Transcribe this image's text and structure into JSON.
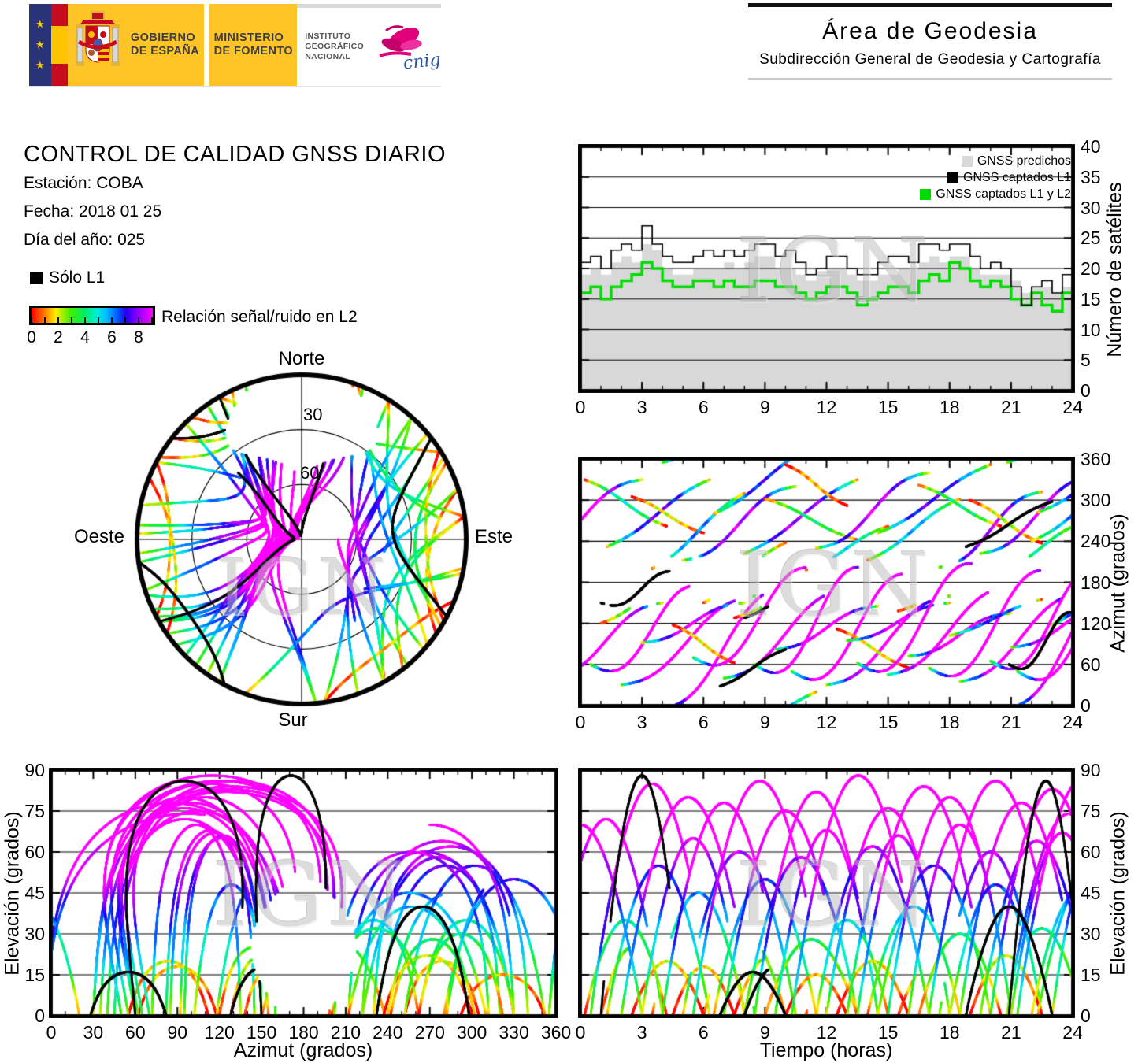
{
  "header": {
    "logo": {
      "star": "★",
      "gobierno_line1": "GOBIERNO",
      "gobierno_line2": "DE ESPAÑA",
      "ministerio_line1": "MINISTERIO",
      "ministerio_line2": "DE FOMENTO",
      "instituto_line1": "INSTITUTO",
      "instituto_line2": "GEOGRÁFICO",
      "instituto_line3": "NACIONAL",
      "cnig": "cnig"
    },
    "area_title": "Área de Geodesia",
    "area_subtitle": "Subdirección General de Geodesia y Cartografía"
  },
  "info": {
    "title": "CONTROL DE CALIDAD GNSS DIARIO",
    "station": "Estación: COBA",
    "date": "Fecha: 2018 01 25",
    "doy": "Día del año: 025"
  },
  "legend": {
    "solo_l1": "Sólo L1",
    "colorbar_title": "Relación señal/ruido en L2",
    "colorbar_tick_labels": [
      0,
      2,
      4,
      6,
      8
    ],
    "colorbar_range": [
      0,
      9
    ]
  },
  "watermark": "IGN",
  "skyplot": {
    "north": "Norte",
    "south": "Sur",
    "east": "Este",
    "west": "Oeste",
    "ring_30": "30",
    "ring_60": "60"
  },
  "charts": {
    "satcount": {
      "ylabel": "Número de satélites",
      "x_ticks": [
        0,
        3,
        6,
        9,
        12,
        15,
        18,
        21,
        24
      ],
      "y_ticks": [
        0,
        5,
        10,
        15,
        20,
        25,
        30,
        35,
        40
      ],
      "legend": [
        {
          "label": "GNSS predichos",
          "color": "#d8d8d8"
        },
        {
          "label": "GNSS captados L1",
          "color": "#000000"
        },
        {
          "label": "GNSS captados L1 y L2",
          "color": "#00dd00"
        }
      ]
    },
    "azimut_time": {
      "ylabel": "Azimut (grados)",
      "x_ticks": [
        0,
        3,
        6,
        9,
        12,
        15,
        18,
        21,
        24
      ],
      "y_ticks": [
        0,
        60,
        120,
        180,
        240,
        300,
        360
      ]
    },
    "elev_azimut": {
      "ylabel": "Elevación (grados)",
      "xlabel": "Azimut (grados)",
      "x_ticks": [
        0,
        30,
        60,
        90,
        120,
        150,
        180,
        210,
        240,
        270,
        300,
        330,
        360
      ],
      "y_ticks": [
        0,
        15,
        30,
        45,
        60,
        75,
        90
      ]
    },
    "elev_time": {
      "ylabel": "Elevación (grados)",
      "xlabel": "Tiempo (horas)",
      "x_ticks": [
        0,
        3,
        6,
        9,
        12,
        15,
        18,
        21,
        24
      ],
      "y_ticks": [
        0,
        15,
        30,
        45,
        60,
        75,
        90
      ]
    }
  },
  "chart_data": {
    "satellite_counts": {
      "type": "line",
      "style": "steps",
      "xlim": [
        0,
        24
      ],
      "ylim": [
        0,
        40
      ],
      "x_start": 0,
      "x_step": 0.5,
      "series": [
        {
          "name": "GNSS predichos",
          "color": "#d8d8d8",
          "fill": true,
          "values": [
            19,
            20,
            19,
            21,
            22,
            21,
            24,
            23,
            20,
            19,
            19,
            20,
            20,
            20,
            21,
            20,
            21,
            22,
            22,
            20,
            20,
            19,
            18,
            19,
            20,
            20,
            19,
            18,
            18,
            19,
            19,
            20,
            20,
            21,
            22,
            21,
            22,
            22,
            20,
            19,
            19,
            19,
            18,
            16,
            17,
            17,
            16,
            17,
            18
          ]
        },
        {
          "name": "GNSS captados L1",
          "color": "#000000",
          "fill": false,
          "values": [
            21,
            22,
            20,
            23,
            24,
            23,
            27,
            24,
            22,
            21,
            21,
            22,
            23,
            22,
            23,
            22,
            23,
            24,
            24,
            22,
            23,
            21,
            19,
            20,
            22,
            22,
            20,
            19,
            19,
            21,
            22,
            22,
            21,
            24,
            24,
            23,
            24,
            24,
            22,
            20,
            21,
            20,
            17,
            14,
            17,
            18,
            16,
            19,
            20
          ]
        },
        {
          "name": "GNSS captados L1 y L2",
          "color": "#00dd00",
          "fill": false,
          "values": [
            16,
            17,
            15,
            17,
            18,
            19,
            21,
            20,
            18,
            17,
            17,
            18,
            18,
            17,
            18,
            17,
            17,
            18,
            18,
            17,
            17,
            16,
            15,
            16,
            17,
            17,
            16,
            14,
            15,
            16,
            17,
            17,
            16,
            18,
            19,
            18,
            21,
            20,
            18,
            17,
            18,
            17,
            15,
            14,
            16,
            14,
            13,
            16,
            16
          ]
        }
      ]
    },
    "satellite_tracks": {
      "type": "scatter",
      "note": "GNSS satellite passes; color = L2 signal/noise class 0-9, black = L1 only",
      "time_lim": [
        0,
        24
      ],
      "azimut_lim": [
        0,
        360
      ],
      "elev_lim": [
        0,
        90
      ],
      "snr_colormap": [
        [
          0.0,
          "#ff0000"
        ],
        [
          0.12,
          "#ff8800"
        ],
        [
          0.2,
          "#ffee00"
        ],
        [
          0.32,
          "#44ee00"
        ],
        [
          0.44,
          "#00ee66"
        ],
        [
          0.54,
          "#00eedd"
        ],
        [
          0.62,
          "#00bbff"
        ],
        [
          0.7,
          "#0066ff"
        ],
        [
          0.78,
          "#2200ee"
        ],
        [
          0.87,
          "#8800ff"
        ],
        [
          1.0,
          "#ff00ff"
        ]
      ],
      "pass_format": [
        "t_rise_h",
        "duration_h",
        "azimut_rise_deg",
        "azimut_set_deg",
        "elev_max_deg",
        "snr_offset",
        "az_swing",
        "l1_only"
      ],
      "passes": [
        [
          -1.5,
          5.5,
          40,
          150,
          72,
          2,
          0.12,
          0
        ],
        [
          0.2,
          4.0,
          330,
          262,
          35,
          0,
          0.05,
          0
        ],
        [
          0.5,
          6.0,
          60,
          165,
          85,
          2.5,
          0.3,
          0
        ],
        [
          1.0,
          3.0,
          120,
          168,
          25,
          -0.5,
          0.05,
          0
        ],
        [
          1.3,
          5.0,
          232,
          330,
          55,
          1,
          0.05,
          0
        ],
        [
          2.0,
          6.5,
          30,
          160,
          80,
          2.5,
          0.12,
          0
        ],
        [
          2.5,
          3.5,
          305,
          252,
          20,
          -1,
          0.05,
          0
        ],
        [
          3.0,
          5.0,
          92,
          150,
          65,
          1.5,
          0.12,
          0
        ],
        [
          3.5,
          4.5,
          200,
          310,
          45,
          0.5,
          0.05,
          0
        ],
        [
          4.0,
          6.0,
          355,
          535,
          78,
          2.5,
          0.12,
          0
        ],
        [
          4.5,
          3.0,
          118,
          62,
          18,
          -1,
          0.05,
          0
        ],
        [
          5.0,
          5.5,
          212,
          320,
          60,
          1.5,
          0.12,
          0
        ],
        [
          5.5,
          6.5,
          70,
          190,
          86,
          2.5,
          0.3,
          0
        ],
        [
          6.0,
          4.0,
          150,
          238,
          30,
          0,
          0.05,
          0
        ],
        [
          6.5,
          5.0,
          280,
          380,
          50,
          1,
          0.05,
          0
        ],
        [
          7.0,
          6.0,
          40,
          170,
          75,
          2,
          0.12,
          0
        ],
        [
          7.5,
          3.5,
          128,
          172,
          22,
          -0.5,
          0.05,
          0
        ],
        [
          8.0,
          5.5,
          222,
          330,
          58,
          1.5,
          0.05,
          0
        ],
        [
          8.5,
          6.0,
          60,
          190,
          82,
          2.5,
          0.3,
          0
        ],
        [
          9.0,
          4.5,
          302,
          242,
          28,
          0,
          0.05,
          0
        ],
        [
          9.5,
          5.0,
          82,
          145,
          68,
          2,
          0.12,
          0
        ],
        [
          10.0,
          3.0,
          352,
          292,
          15,
          -1,
          0.05,
          0
        ],
        [
          10.3,
          6.5,
          50,
          180,
          88,
          2.5,
          0.3,
          0
        ],
        [
          11.0,
          4.0,
          198,
          262,
          35,
          0.5,
          0.05,
          0
        ],
        [
          11.5,
          5.5,
          230,
          340,
          62,
          1.5,
          0.12,
          0
        ],
        [
          12.0,
          6.0,
          30,
          160,
          76,
          2,
          0.12,
          0
        ],
        [
          12.5,
          3.5,
          112,
          55,
          20,
          -1,
          0.05,
          0
        ],
        [
          13.0,
          5.0,
          95,
          150,
          66,
          1.5,
          0.12,
          0
        ],
        [
          13.5,
          6.5,
          62,
          195,
          84,
          2.5,
          0.3,
          0
        ],
        [
          14.0,
          4.5,
          212,
          302,
          40,
          0.5,
          0.05,
          0
        ],
        [
          14.5,
          5.5,
          252,
          352,
          55,
          1,
          0.05,
          0
        ],
        [
          15.0,
          6.0,
          45,
          175,
          80,
          2.5,
          0.12,
          0
        ],
        [
          15.5,
          3.0,
          138,
          178,
          18,
          -0.5,
          0.05,
          0
        ],
        [
          16.0,
          5.0,
          72,
          135,
          70,
          2,
          0.12,
          0
        ],
        [
          16.5,
          4.0,
          322,
          262,
          30,
          0,
          0.05,
          0
        ],
        [
          17.0,
          6.5,
          55,
          185,
          86,
          2.5,
          0.3,
          0
        ],
        [
          17.5,
          5.0,
          202,
          312,
          60,
          1.5,
          0.12,
          0
        ],
        [
          18.0,
          4.5,
          102,
          155,
          48,
          1,
          0.05,
          0
        ],
        [
          18.5,
          6.0,
          35,
          165,
          78,
          2,
          0.12,
          0
        ],
        [
          19.0,
          3.5,
          300,
          237,
          22,
          -1,
          0.05,
          0
        ],
        [
          19.5,
          5.5,
          222,
          335,
          64,
          1.5,
          0.12,
          0
        ],
        [
          20.0,
          6.0,
          65,
          190,
          83,
          2.5,
          0.3,
          0
        ],
        [
          20.5,
          4.0,
          195,
          268,
          32,
          0,
          0.05,
          0
        ],
        [
          21.0,
          5.0,
          85,
          148,
          67,
          2,
          0.12,
          0
        ],
        [
          21.3,
          6.5,
          50,
          182,
          87,
          2.5,
          0.3,
          0
        ],
        [
          22.0,
          4.5,
          240,
          330,
          45,
          0.5,
          0.05,
          0
        ],
        [
          22.3,
          5.0,
          282,
          370,
          52,
          1,
          0.05,
          0
        ],
        [
          23.0,
          4.0,
          118,
          205,
          58,
          1.5,
          0.05,
          0
        ],
        [
          -3.0,
          6.0,
          210,
          330,
          70,
          2,
          0.12,
          0
        ],
        [
          20.8,
          6.0,
          355,
          560,
          74,
          2,
          0.12,
          0
        ],
        [
          1.0,
          4.0,
          150,
          192,
          88,
          0,
          0.3,
          1
        ],
        [
          6.8,
          3.2,
          28,
          82,
          16,
          0,
          0.05,
          1
        ],
        [
          20.9,
          3.6,
          60,
          130,
          86,
          0,
          0.3,
          1
        ],
        [
          18.8,
          4.2,
          232,
          298,
          40,
          0,
          0.05,
          1
        ],
        [
          8.0,
          3.0,
          128,
          176,
          18,
          0,
          0.05,
          1
        ]
      ]
    }
  }
}
